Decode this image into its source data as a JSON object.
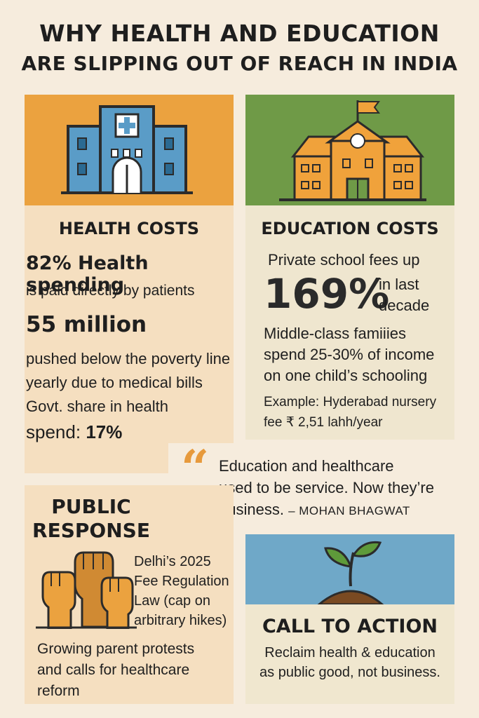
{
  "title": {
    "line1": "WHY HEALTH AND EDUCATION",
    "line2": "ARE SLIPPING OUT OF REACH IN INDIA"
  },
  "health": {
    "heading": "HEALTH COSTS",
    "stat1_value": "82% Health spending",
    "stat1_text": "is paid directly by patients",
    "stat2_value": "55 million",
    "stat2_text_line1": "pushed below the poverty line",
    "stat2_text_line2": "yearly due to medical bills",
    "stat3_text_line1": "Govt. share in health",
    "stat3_text_line2": "spend:",
    "stat3_value": "17%",
    "icon": "hospital-icon",
    "colors": {
      "header_bg": "#eba23f",
      "body_bg": "#f5dfc0",
      "building": "#5a9cc7"
    }
  },
  "education": {
    "heading": "EDUCATION COSTS",
    "line1": "Private school fees up",
    "big_value": "169%",
    "side_line1": "in last",
    "side_line2": "decade",
    "stat_line1": "Middle-class famiiies",
    "stat_line2": "spend 25-30% of income",
    "stat_line3": "on one child’s schooling",
    "example_line1": "Example: Hyderabad nursery",
    "example_line2": "fee ₹ 2,51 lahh/year",
    "icon": "school-icon",
    "colors": {
      "header_bg": "#6f9a47",
      "body_bg": "#efe6cf",
      "building": "#f0a23b"
    }
  },
  "quote": {
    "mark": "“",
    "line1": "Education and healthcare",
    "line2": "used to be service. Now they’re",
    "line3": "business.",
    "author": "– MOHAN BHAGWAT",
    "colors": {
      "mark": "#e79a3c"
    }
  },
  "public_response": {
    "heading_line1": "PUBLIC",
    "heading_line2": "RESPONSE",
    "law_line1": "Delhi’s 2025",
    "law_line2": "Fee Regulation",
    "law_line3": "Law (cap on",
    "law_line4": "arbitrary hikes)",
    "protest_line1": "Growing parent protests",
    "protest_line2": "and calls for healthcare",
    "protest_line3": "reform",
    "icon": "raised-fists-icon"
  },
  "call_to_action": {
    "heading": "CALL TO ACTION",
    "line1": "Reclaim health & education",
    "line2": "as public good, not business.",
    "icon": "sprout-icon",
    "colors": {
      "header_bg": "#6fa8c8",
      "body_bg": "#f0e7cf"
    }
  }
}
